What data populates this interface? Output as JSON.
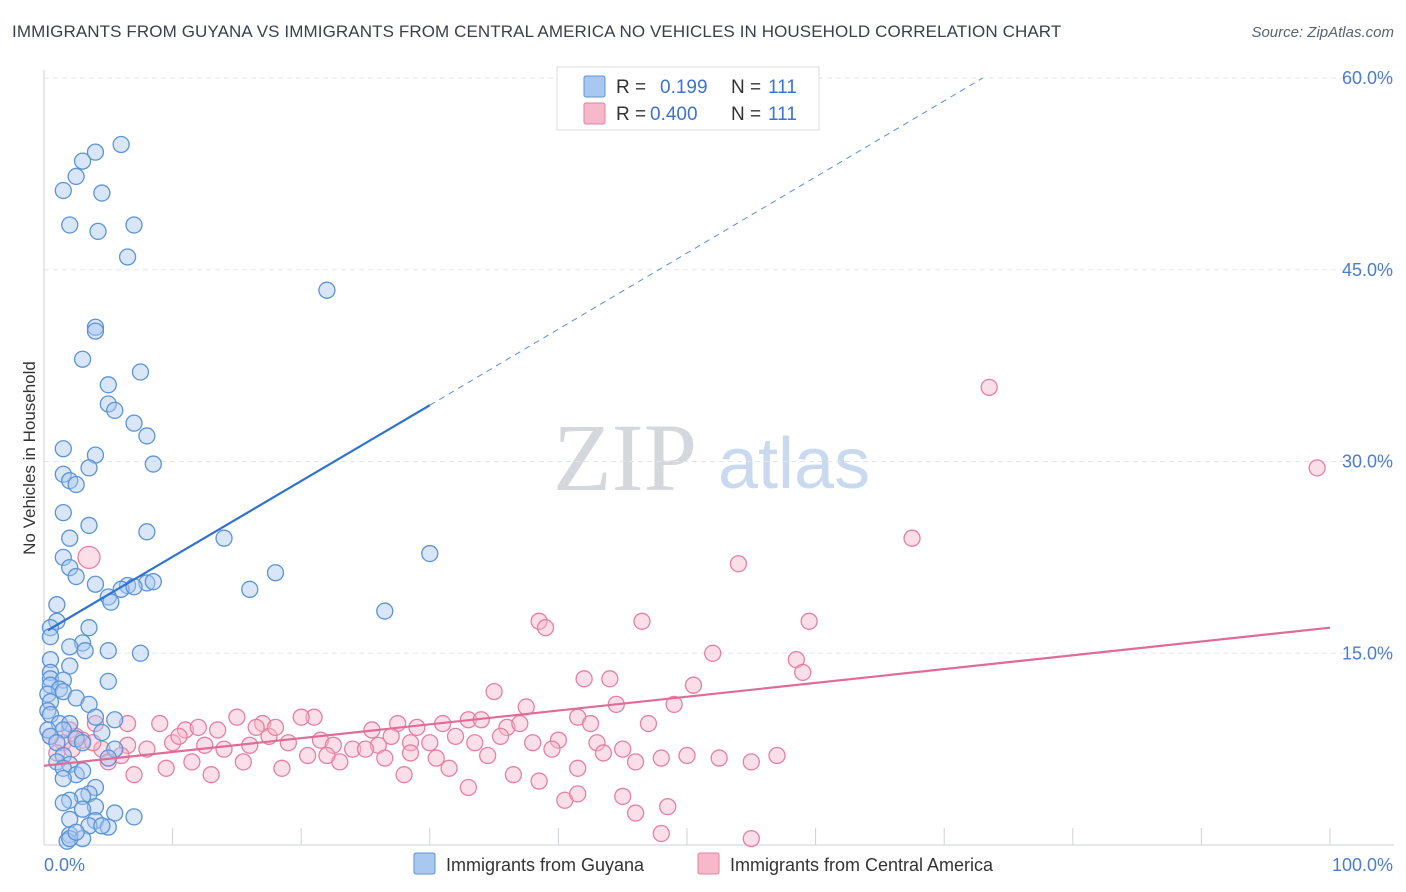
{
  "header": {
    "title": "IMMIGRANTS FROM GUYANA VS IMMIGRANTS FROM CENTRAL AMERICA NO VEHICLES IN HOUSEHOLD CORRELATION CHART",
    "source": "Source: ZipAtlas.com"
  },
  "watermark": {
    "part1": "ZIP",
    "part2": "atlas"
  },
  "legend_top": [
    {
      "r_label": "R =",
      "r_value": "0.199",
      "n_label": "N =",
      "n_value": "111",
      "color": "#a9c8f0"
    },
    {
      "r_label": "R =",
      "r_value": "0.400",
      "n_label": "N =",
      "n_value": "111",
      "color": "#f7b8cb"
    }
  ],
  "colors": {
    "guyana_fill": "#a9c8f0",
    "guyana_stroke": "#5b93d8",
    "guyana_line": "#2f72d0",
    "central_fill": "#f7b8cb",
    "central_stroke": "#e77fa0",
    "central_line": "#e06b96",
    "tick_text": "#4a7cd1",
    "grid": "#e3e6ea"
  },
  "chart_data": {
    "type": "scatter",
    "title": "IMMIGRANTS FROM GUYANA VS IMMIGRANTS FROM CENTRAL AMERICA NO VEHICLES IN HOUSEHOLD CORRELATION CHART",
    "xlabel": "",
    "ylabel": "No Vehicles in Household",
    "xlim": [
      0,
      100
    ],
    "ylim": [
      0,
      60
    ],
    "x_tick_labels": [
      "0.0%",
      "100.0%"
    ],
    "y_ticks": [
      15,
      30,
      45,
      60
    ],
    "y_tick_labels": [
      "15.0%",
      "30.0%",
      "45.0%",
      "60.0%"
    ],
    "grid": true,
    "legend_position": "top-center",
    "series": [
      {
        "name": "Immigrants from Guyana",
        "r": 0.199,
        "n": 111,
        "trend": {
          "x": [
            0.3,
            30
          ],
          "y": [
            16.8,
            34.4
          ],
          "dashed_extension_x": [
            30,
            73
          ],
          "dashed_extension_y": [
            34.4,
            60
          ]
        },
        "points": [
          [
            1.5,
            51.2
          ],
          [
            2.5,
            52.3
          ],
          [
            3.0,
            53.5
          ],
          [
            4.0,
            54.2
          ],
          [
            4.5,
            51.0
          ],
          [
            6.0,
            54.8
          ],
          [
            6.5,
            46.0
          ],
          [
            2.0,
            48.5
          ],
          [
            4.2,
            48.0
          ],
          [
            7.0,
            48.5
          ],
          [
            22.0,
            43.4
          ],
          [
            4.0,
            40.5
          ],
          [
            4.0,
            40.2
          ],
          [
            3.0,
            38.0
          ],
          [
            5.0,
            36.0
          ],
          [
            7.5,
            37.0
          ],
          [
            5.0,
            34.5
          ],
          [
            5.5,
            34.0
          ],
          [
            7.0,
            33.0
          ],
          [
            8.0,
            32.0
          ],
          [
            1.5,
            31.0
          ],
          [
            4.0,
            30.5
          ],
          [
            8.5,
            29.8
          ],
          [
            3.5,
            29.5
          ],
          [
            1.5,
            29.0
          ],
          [
            2.0,
            28.5
          ],
          [
            2.5,
            28.2
          ],
          [
            1.5,
            26.0
          ],
          [
            3.5,
            25.0
          ],
          [
            8.0,
            24.5
          ],
          [
            2.0,
            24.0
          ],
          [
            14.0,
            24.0
          ],
          [
            30.0,
            22.8
          ],
          [
            1.5,
            22.5
          ],
          [
            2.0,
            21.7
          ],
          [
            2.5,
            21.0
          ],
          [
            18.0,
            21.3
          ],
          [
            4.0,
            20.4
          ],
          [
            6.5,
            20.3
          ],
          [
            6.0,
            20.0
          ],
          [
            8.0,
            20.5
          ],
          [
            8.5,
            20.6
          ],
          [
            7.0,
            20.2
          ],
          [
            16.0,
            20.0
          ],
          [
            5.0,
            19.4
          ],
          [
            5.2,
            19.0
          ],
          [
            1.0,
            18.8
          ],
          [
            26.5,
            18.3
          ],
          [
            1.0,
            17.5
          ],
          [
            0.5,
            17.0
          ],
          [
            3.5,
            17.0
          ],
          [
            0.5,
            16.3
          ],
          [
            3.0,
            15.8
          ],
          [
            2.0,
            15.5
          ],
          [
            3.2,
            15.2
          ],
          [
            5.0,
            15.2
          ],
          [
            7.5,
            15.0
          ],
          [
            0.5,
            14.5
          ],
          [
            2.0,
            14.0
          ],
          [
            0.5,
            13.5
          ],
          [
            0.5,
            13.0
          ],
          [
            1.5,
            12.9
          ],
          [
            5.0,
            12.8
          ],
          [
            0.5,
            12.5
          ],
          [
            1.2,
            12.2
          ],
          [
            1.5,
            12.0
          ],
          [
            0.3,
            11.8
          ],
          [
            2.5,
            11.5
          ],
          [
            0.5,
            11.2
          ],
          [
            3.5,
            11.0
          ],
          [
            0.3,
            10.5
          ],
          [
            0.5,
            10.2
          ],
          [
            4.0,
            10.0
          ],
          [
            5.5,
            9.8
          ],
          [
            1.2,
            9.5
          ],
          [
            2.0,
            9.5
          ],
          [
            1.5,
            9.0
          ],
          [
            0.3,
            9.0
          ],
          [
            4.5,
            8.8
          ],
          [
            0.5,
            8.5
          ],
          [
            2.5,
            8.3
          ],
          [
            1.0,
            8.0
          ],
          [
            3.0,
            8.0
          ],
          [
            5.5,
            7.5
          ],
          [
            1.5,
            7.0
          ],
          [
            5.0,
            6.8
          ],
          [
            1.0,
            6.5
          ],
          [
            2.0,
            6.3
          ],
          [
            1.5,
            6.0
          ],
          [
            2.5,
            5.5
          ],
          [
            3.0,
            5.8
          ],
          [
            1.5,
            5.2
          ],
          [
            4.0,
            4.5
          ],
          [
            3.5,
            4.0
          ],
          [
            3.0,
            3.8
          ],
          [
            2.0,
            3.5
          ],
          [
            1.5,
            3.3
          ],
          [
            4.0,
            3.0
          ],
          [
            3.0,
            2.8
          ],
          [
            5.5,
            2.5
          ],
          [
            7.0,
            2.2
          ],
          [
            2.0,
            2.0
          ],
          [
            4.0,
            1.9
          ],
          [
            3.5,
            1.5
          ],
          [
            5.0,
            1.4
          ],
          [
            2.0,
            0.8
          ],
          [
            3.0,
            0.5
          ],
          [
            1.8,
            0.3
          ],
          [
            2.0,
            0.5
          ],
          [
            2.5,
            1.0
          ],
          [
            4.5,
            1.5
          ]
        ]
      },
      {
        "name": "Immigrants from Central America",
        "r": 0.4,
        "n": 111,
        "trend": {
          "x": [
            0,
            100
          ],
          "y": [
            6.2,
            17.0
          ]
        },
        "points": [
          [
            3.5,
            22.5
          ],
          [
            99.0,
            29.5
          ],
          [
            73.5,
            35.8
          ],
          [
            67.5,
            24.0
          ],
          [
            54.0,
            22.0
          ],
          [
            38.5,
            17.5
          ],
          [
            39.0,
            17.0
          ],
          [
            46.5,
            17.5
          ],
          [
            59.5,
            17.5
          ],
          [
            52.0,
            15.0
          ],
          [
            58.5,
            14.5
          ],
          [
            59.0,
            13.5
          ],
          [
            44.0,
            13.0
          ],
          [
            42.0,
            13.0
          ],
          [
            50.5,
            12.5
          ],
          [
            35.0,
            12.0
          ],
          [
            49.0,
            11.0
          ],
          [
            44.5,
            11.0
          ],
          [
            37.5,
            10.8
          ],
          [
            41.5,
            10.0
          ],
          [
            42.5,
            9.5
          ],
          [
            47.0,
            9.5
          ],
          [
            36.0,
            9.2
          ],
          [
            31.0,
            9.5
          ],
          [
            33.0,
            9.8
          ],
          [
            37.0,
            9.5
          ],
          [
            27.5,
            9.5
          ],
          [
            25.5,
            9.0
          ],
          [
            21.0,
            10.0
          ],
          [
            20.0,
            10.0
          ],
          [
            15.0,
            10.0
          ],
          [
            17.0,
            9.5
          ],
          [
            11.0,
            9.0
          ],
          [
            9.0,
            9.5
          ],
          [
            13.5,
            9.0
          ],
          [
            6.5,
            9.5
          ],
          [
            4.0,
            9.5
          ],
          [
            2.0,
            9.0
          ],
          [
            0.5,
            8.5
          ],
          [
            1.5,
            8.0
          ],
          [
            2.5,
            8.5
          ],
          [
            3.0,
            8.2
          ],
          [
            4.5,
            7.5
          ],
          [
            6.5,
            7.8
          ],
          [
            8.0,
            7.5
          ],
          [
            10.0,
            8.0
          ],
          [
            12.5,
            7.8
          ],
          [
            14.0,
            7.5
          ],
          [
            16.0,
            7.8
          ],
          [
            17.5,
            8.5
          ],
          [
            19.0,
            8.0
          ],
          [
            21.5,
            8.2
          ],
          [
            22.5,
            7.8
          ],
          [
            24.0,
            7.5
          ],
          [
            26.0,
            7.8
          ],
          [
            27.0,
            8.5
          ],
          [
            28.5,
            8.0
          ],
          [
            30.0,
            8.0
          ],
          [
            32.0,
            8.5
          ],
          [
            33.5,
            8.0
          ],
          [
            35.5,
            8.5
          ],
          [
            38.0,
            8.0
          ],
          [
            40.0,
            8.2
          ],
          [
            43.0,
            8.0
          ],
          [
            45.0,
            7.5
          ],
          [
            46.0,
            6.5
          ],
          [
            48.0,
            6.8
          ],
          [
            50.0,
            7.0
          ],
          [
            52.5,
            6.8
          ],
          [
            55.0,
            6.5
          ],
          [
            57.0,
            7.0
          ],
          [
            11.5,
            6.5
          ],
          [
            15.5,
            6.5
          ],
          [
            18.5,
            6.0
          ],
          [
            23.0,
            6.5
          ],
          [
            25.0,
            7.5
          ],
          [
            28.0,
            5.5
          ],
          [
            31.5,
            6.0
          ],
          [
            34.5,
            7.0
          ],
          [
            36.5,
            5.5
          ],
          [
            7.0,
            5.5
          ],
          [
            9.5,
            6.0
          ],
          [
            13.0,
            5.5
          ],
          [
            20.5,
            7.0
          ],
          [
            28.5,
            7.2
          ],
          [
            33.0,
            4.5
          ],
          [
            40.5,
            3.5
          ],
          [
            41.5,
            4.0
          ],
          [
            45.0,
            3.8
          ],
          [
            46.0,
            2.5
          ],
          [
            48.0,
            0.9
          ],
          [
            48.5,
            3.0
          ],
          [
            55.0,
            0.5
          ],
          [
            5.0,
            6.5
          ],
          [
            6.0,
            7.0
          ],
          [
            22.0,
            7.0
          ],
          [
            26.5,
            6.8
          ],
          [
            30.5,
            6.8
          ],
          [
            38.5,
            5.0
          ],
          [
            41.5,
            6.0
          ],
          [
            39.5,
            7.5
          ],
          [
            43.5,
            7.2
          ],
          [
            16.5,
            9.2
          ],
          [
            29.0,
            9.2
          ],
          [
            34.0,
            9.8
          ],
          [
            10.5,
            8.5
          ],
          [
            12.0,
            9.2
          ],
          [
            18.0,
            9.2
          ],
          [
            3.8,
            8.0
          ],
          [
            1.0,
            7.2
          ],
          [
            2.2,
            7.5
          ]
        ]
      }
    ]
  },
  "legend_bottom": [
    {
      "label": "Immigrants from Guyana"
    },
    {
      "label": "Immigrants from Central America"
    }
  ]
}
